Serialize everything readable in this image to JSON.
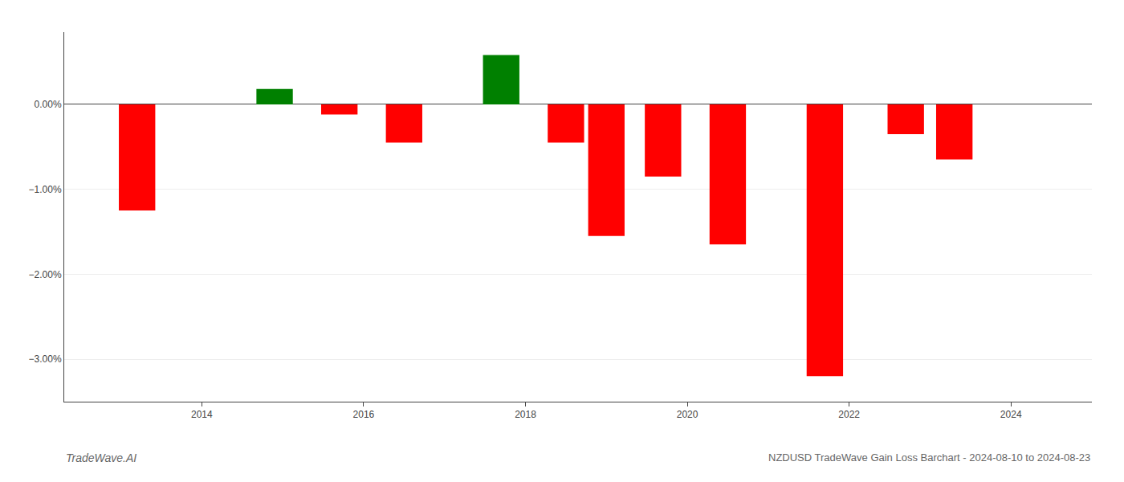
{
  "chart_data": {
    "type": "bar",
    "x": [
      2013.2,
      2014.9,
      2015.7,
      2016.5,
      2017.7,
      2018.5,
      2019.0,
      2019.7,
      2020.5,
      2021.7,
      2022.7,
      2023.3
    ],
    "values": [
      -1.25,
      0.18,
      -0.12,
      -0.45,
      0.58,
      -0.45,
      -1.55,
      -0.85,
      -1.65,
      -3.2,
      -0.35,
      -0.65
    ],
    "colors": [
      "#ff0000",
      "#008000",
      "#ff0000",
      "#ff0000",
      "#008000",
      "#ff0000",
      "#ff0000",
      "#ff0000",
      "#ff0000",
      "#ff0000",
      "#ff0000",
      "#ff0000"
    ],
    "xlim": [
      2012.3,
      2025.0
    ],
    "xticks": [
      2014,
      2016,
      2018,
      2020,
      2022,
      2024
    ],
    "ylim": [
      -3.5,
      0.85
    ],
    "yticks": [
      {
        "value": 0.0,
        "label": "0.00%"
      },
      {
        "value": -1.0,
        "label": "−1.00%"
      },
      {
        "value": -2.0,
        "label": "−2.00%"
      },
      {
        "value": -3.0,
        "label": "−3.00%"
      }
    ],
    "grid": true,
    "annotations": [
      "TradeWave.AI",
      "NZDUSD TradeWave Gain Loss Barchart - 2024-08-10 to 2024-08-23"
    ]
  }
}
